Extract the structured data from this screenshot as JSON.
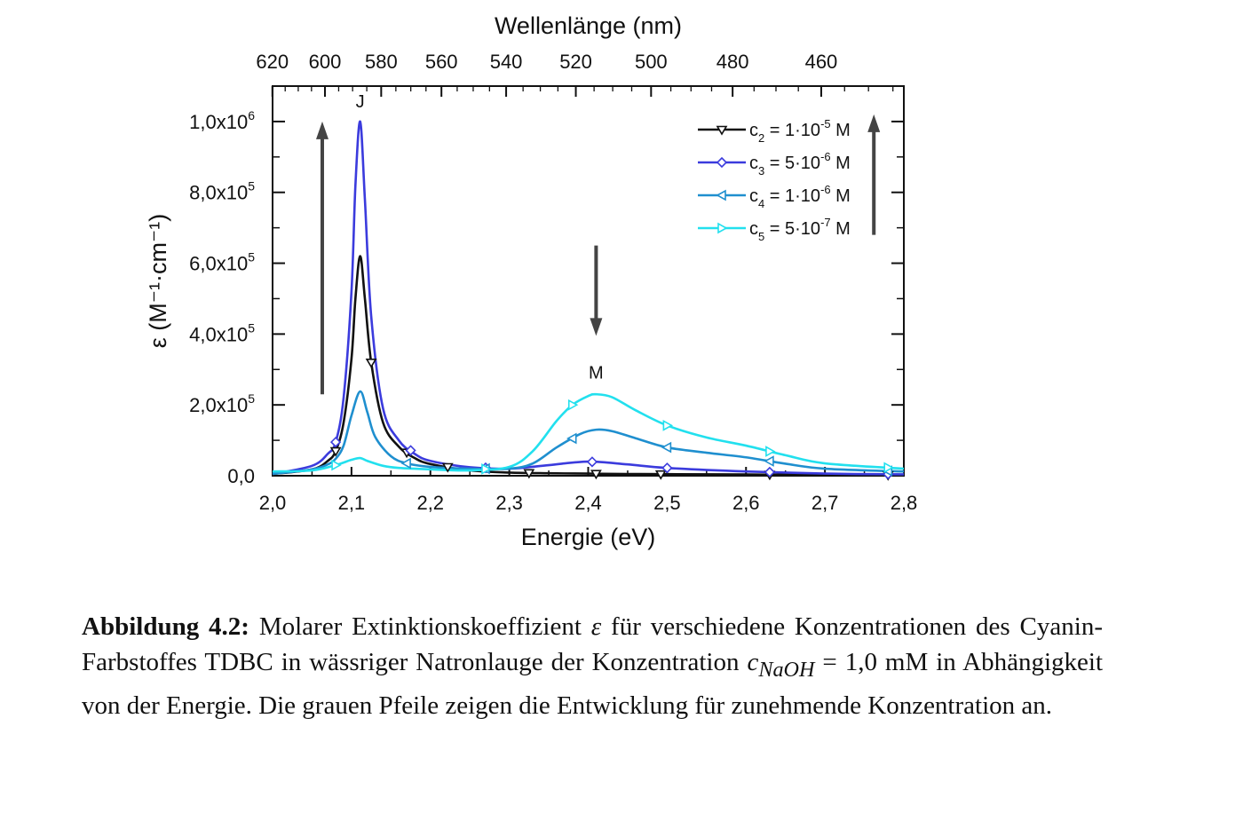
{
  "chart_data": {
    "type": "line",
    "xlabel": "Energie (eV)",
    "top_xlabel": "Wellenlänge (nm)",
    "ylabel": "ε (M⁻¹·cm⁻¹)",
    "xlim": [
      2.0,
      2.8
    ],
    "ylim": [
      0,
      1100000
    ],
    "x_ticks": [
      "2,0",
      "2,1",
      "2,2",
      "2,3",
      "2,4",
      "2,5",
      "2,6",
      "2,7",
      "2,8"
    ],
    "x_tick_values": [
      2.0,
      2.1,
      2.2,
      2.3,
      2.4,
      2.5,
      2.6,
      2.7,
      2.8
    ],
    "y_ticks": [
      {
        "value": 0,
        "mantissa": "0,0",
        "exp": ""
      },
      {
        "value": 200000,
        "mantissa": "2,0x10",
        "exp": "5"
      },
      {
        "value": 400000,
        "mantissa": "4,0x10",
        "exp": "5"
      },
      {
        "value": 600000,
        "mantissa": "6,0x10",
        "exp": "5"
      },
      {
        "value": 800000,
        "mantissa": "8,0x10",
        "exp": "5"
      },
      {
        "value": 1000000,
        "mantissa": "1,0x10",
        "exp": "6"
      }
    ],
    "top_ticks": [
      {
        "label": "620",
        "nm": 620
      },
      {
        "label": "600",
        "nm": 600
      },
      {
        "label": "580",
        "nm": 580
      },
      {
        "label": "560",
        "nm": 560
      },
      {
        "label": "540",
        "nm": 540
      },
      {
        "label": "520",
        "nm": 520
      },
      {
        "label": "500",
        "nm": 500
      },
      {
        "label": "480",
        "nm": 480
      },
      {
        "label": "460",
        "nm": 460
      }
    ],
    "annotations": [
      {
        "text": "J",
        "x": 2.111,
        "y": 1040000
      },
      {
        "text": "M",
        "x": 2.41,
        "y": 275000
      }
    ],
    "arrows": [
      {
        "direction": "up",
        "x": 2.063,
        "y_from": 230000,
        "y_to": 1000000
      },
      {
        "direction": "down",
        "x": 2.41,
        "y_from": 650000,
        "y_to": 395000
      },
      {
        "direction": "up",
        "x": 2.762,
        "y_from": 680000,
        "y_to": 1020000
      }
    ],
    "legend_position": "top-right",
    "series": [
      {
        "name": "c₂ = 1·10⁻⁵ M",
        "label_main": "c",
        "label_sub": "2",
        "label_val": " = 1·10",
        "label_exp": "-5",
        "label_unit": " M",
        "color": "#111111",
        "marker": "triangle-down",
        "x": [
          2.0,
          2.05,
          2.07,
          2.08,
          2.09,
          2.1,
          2.105,
          2.111,
          2.117,
          2.125,
          2.14,
          2.16,
          2.18,
          2.2,
          2.25,
          2.3,
          2.35,
          2.4,
          2.45,
          2.5,
          2.6,
          2.7,
          2.8
        ],
        "y": [
          5000,
          18000,
          42000,
          70000,
          150000,
          330000,
          500000,
          620000,
          500000,
          320000,
          150000,
          82000,
          50000,
          33000,
          15000,
          9000,
          7000,
          6000,
          5000,
          4500,
          3500,
          2500,
          2000
        ],
        "marker_x": [
          2.08,
          2.125,
          2.17,
          2.222,
          2.325,
          2.41,
          2.492,
          2.63,
          2.78
        ]
      },
      {
        "name": "c₃ = 5·10⁻⁶ M",
        "label_main": "c",
        "label_sub": "3",
        "label_val": " = 5·10",
        "label_exp": "-6",
        "label_unit": " M",
        "color": "#3b3bdd",
        "marker": "diamond",
        "x": [
          2.0,
          2.05,
          2.07,
          2.08,
          2.09,
          2.1,
          2.105,
          2.111,
          2.117,
          2.125,
          2.14,
          2.16,
          2.18,
          2.2,
          2.25,
          2.3,
          2.35,
          2.4,
          2.45,
          2.5,
          2.6,
          2.7,
          2.8
        ],
        "y": [
          5000,
          28000,
          62000,
          95000,
          220000,
          520000,
          820000,
          1000000,
          780000,
          450000,
          190000,
          100000,
          62000,
          42000,
          24000,
          20000,
          30000,
          40000,
          32000,
          22000,
          12000,
          6000,
          4000
        ],
        "marker_x": [
          2.08,
          2.175,
          2.27,
          2.405,
          2.5,
          2.63,
          2.78
        ]
      },
      {
        "name": "c₄ = 1·10⁻⁶ M",
        "label_main": "c",
        "label_sub": "4",
        "label_val": " = 1·10",
        "label_exp": "-6",
        "label_unit": " M",
        "color": "#1f8fcf",
        "marker": "triangle-left",
        "x": [
          2.0,
          2.05,
          2.07,
          2.08,
          2.09,
          2.1,
          2.111,
          2.12,
          2.13,
          2.15,
          2.17,
          2.2,
          2.25,
          2.3,
          2.33,
          2.36,
          2.39,
          2.41,
          2.43,
          2.46,
          2.5,
          2.55,
          2.6,
          2.65,
          2.7,
          2.8
        ],
        "y": [
          5000,
          18000,
          32000,
          48000,
          85000,
          170000,
          238000,
          180000,
          110000,
          55000,
          35000,
          25000,
          20000,
          20000,
          35000,
          80000,
          118000,
          130000,
          126000,
          106000,
          80000,
          65000,
          52000,
          34000,
          20000,
          12000
        ],
        "marker_x": [
          2.17,
          2.27,
          2.38,
          2.5,
          2.63,
          2.78
        ]
      },
      {
        "name": "c₅ = 5·10⁻⁷ M",
        "label_main": "c",
        "label_sub": "5",
        "label_val": " = 5·10",
        "label_exp": "-7",
        "label_unit": " M",
        "color": "#22e0ee",
        "marker": "triangle-right",
        "x": [
          2.0,
          2.05,
          2.08,
          2.1,
          2.111,
          2.12,
          2.14,
          2.16,
          2.2,
          2.25,
          2.3,
          2.33,
          2.36,
          2.38,
          2.4,
          2.41,
          2.43,
          2.46,
          2.5,
          2.55,
          2.6,
          2.65,
          2.7,
          2.8
        ],
        "y": [
          12000,
          15000,
          30000,
          45000,
          50000,
          42000,
          28000,
          22000,
          18000,
          15000,
          25000,
          70000,
          155000,
          200000,
          225000,
          230000,
          222000,
          185000,
          142000,
          108000,
          85000,
          58000,
          35000,
          20000
        ],
        "marker_x": [
          2.08,
          2.27,
          2.38,
          2.5,
          2.63,
          2.78
        ]
      }
    ]
  },
  "caption": {
    "label": "Abbildung 4.2:",
    "text_before_symbol": " Molarer Extinktionskoeffizient ",
    "symbol": "ε",
    "text_mid": " für verschiedene Konzentrationen des Cyanin-Farbstoffes TDBC in wässriger Natronlauge der Konzentration ",
    "math_var": "c",
    "math_sub": "NaOH",
    "text_after_math": " = 1,0 mM in Abhängigkeit von der Energie. Die grauen Pfeile zeigen die Entwicklung für zunehmende Konzentration an."
  }
}
